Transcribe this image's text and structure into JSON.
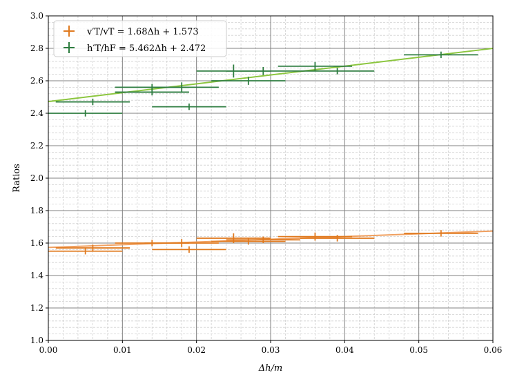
{
  "chart_data": {
    "type": "scatter",
    "xlabel": "Δh/m",
    "ylabel": "Ratios",
    "xlim": [
      0.0,
      0.06
    ],
    "ylim": [
      1.0,
      3.0
    ],
    "x_ticks": [
      "0.00",
      "0.01",
      "0.02",
      "0.03",
      "0.04",
      "0.05",
      "0.06"
    ],
    "y_ticks": [
      "1.0",
      "1.2",
      "1.4",
      "1.6",
      "1.8",
      "2.0",
      "2.2",
      "2.4",
      "2.6",
      "2.8",
      "3.0"
    ],
    "grid": true,
    "minor_grid": true,
    "legend_position": "top-left",
    "series": [
      {
        "name": "v′T/vT = 1.68Δh + 1.573",
        "color": "#e07a1f",
        "fit": {
          "slope": 1.68,
          "intercept": 1.573,
          "color": "#f0a060"
        },
        "points": [
          {
            "x": 0.005,
            "y": 1.55,
            "xerr": 0.005,
            "yerr": 0.02
          },
          {
            "x": 0.006,
            "y": 1.57,
            "xerr": 0.005,
            "yerr": 0.02
          },
          {
            "x": 0.014,
            "y": 1.6,
            "xerr": 0.005,
            "yerr": 0.02
          },
          {
            "x": 0.018,
            "y": 1.6,
            "xerr": 0.005,
            "yerr": 0.025
          },
          {
            "x": 0.019,
            "y": 1.56,
            "xerr": 0.005,
            "yerr": 0.02
          },
          {
            "x": 0.025,
            "y": 1.63,
            "xerr": 0.005,
            "yerr": 0.03
          },
          {
            "x": 0.027,
            "y": 1.61,
            "xerr": 0.005,
            "yerr": 0.02
          },
          {
            "x": 0.029,
            "y": 1.62,
            "xerr": 0.005,
            "yerr": 0.02
          },
          {
            "x": 0.036,
            "y": 1.64,
            "xerr": 0.005,
            "yerr": 0.025
          },
          {
            "x": 0.039,
            "y": 1.63,
            "xerr": 0.005,
            "yerr": 0.02
          },
          {
            "x": 0.053,
            "y": 1.66,
            "xerr": 0.005,
            "yerr": 0.02
          }
        ]
      },
      {
        "name": "h′T/hF = 5.462Δh + 2.472",
        "color": "#2e7d40",
        "fit": {
          "slope": 5.462,
          "intercept": 2.472,
          "color": "#8cc63f"
        },
        "points": [
          {
            "x": 0.005,
            "y": 2.4,
            "xerr": 0.005,
            "yerr": 0.02
          },
          {
            "x": 0.006,
            "y": 2.47,
            "xerr": 0.005,
            "yerr": 0.02
          },
          {
            "x": 0.014,
            "y": 2.53,
            "xerr": 0.005,
            "yerr": 0.02
          },
          {
            "x": 0.014,
            "y": 2.56,
            "xerr": 0.005,
            "yerr": 0.02
          },
          {
            "x": 0.018,
            "y": 2.56,
            "xerr": 0.005,
            "yerr": 0.03
          },
          {
            "x": 0.019,
            "y": 2.44,
            "xerr": 0.005,
            "yerr": 0.02
          },
          {
            "x": 0.025,
            "y": 2.66,
            "xerr": 0.005,
            "yerr": 0.04
          },
          {
            "x": 0.027,
            "y": 2.6,
            "xerr": 0.005,
            "yerr": 0.025
          },
          {
            "x": 0.029,
            "y": 2.66,
            "xerr": 0.005,
            "yerr": 0.025
          },
          {
            "x": 0.036,
            "y": 2.69,
            "xerr": 0.005,
            "yerr": 0.025
          },
          {
            "x": 0.039,
            "y": 2.66,
            "xerr": 0.005,
            "yerr": 0.02
          },
          {
            "x": 0.053,
            "y": 2.76,
            "xerr": 0.005,
            "yerr": 0.02
          }
        ]
      }
    ]
  }
}
